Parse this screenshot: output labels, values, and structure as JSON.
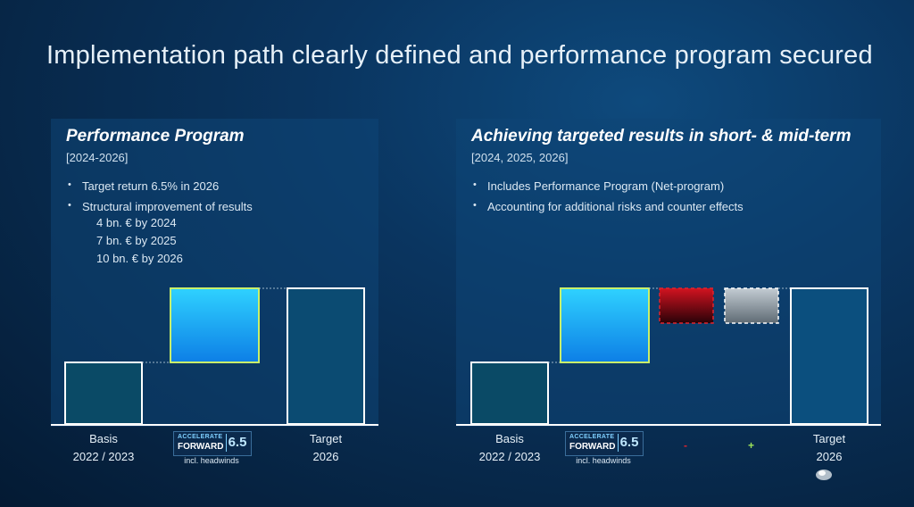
{
  "title": "Implementation path clearly defined and performance program secured",
  "left_panel": {
    "title": "Performance Program",
    "subtitle": "[2024-2026]",
    "bullets": [
      "Target return 6.5% in 2026",
      "Structural improvement of results"
    ],
    "subitems": [
      "4 bn. € by 2024",
      "7 bn. € by 2025",
      "10 bn. € by 2026"
    ],
    "chart": {
      "labels": [
        {
          "line1": "Basis",
          "line2": "2022 / 2023"
        },
        {
          "line1": "",
          "line2": "incl. headwinds"
        },
        {
          "line1": "Target",
          "line2": "2026"
        }
      ]
    }
  },
  "right_panel": {
    "title": "Achieving targeted results in short- & mid-term",
    "subtitle": "[2024, 2025, 2026]",
    "bullets": [
      "Includes Performance Program (Net-program)",
      "Accounting for additional risks and counter effects"
    ],
    "chart": {
      "labels": [
        {
          "line1": "Basis",
          "line2": "2022 / 2023"
        },
        {
          "line1": "",
          "line2": "incl. headwinds"
        },
        {
          "line1": "-",
          "line2": ""
        },
        {
          "line1": "+",
          "line2": ""
        },
        {
          "line1": "Target",
          "line2": "2026"
        }
      ]
    }
  },
  "logo": {
    "accelerate": "ACCELERATE",
    "forward": "FORWARD",
    "number": "6.5"
  },
  "colors": {
    "basis_fill": "#0a4a6e",
    "program_fill_top": "#27c8ff",
    "program_fill_bottom": "#0f86e8",
    "program_border": "#c9f06a",
    "target_fill": "#0b4f7e",
    "risk_fill_top": "#c8101a",
    "risk_fill_bottom": "#2a0208",
    "counter_fill_top": "#b9c3cb",
    "counter_fill_bottom": "#6b7780",
    "minus_color": "#e0242e",
    "plus_color": "#9ee35a"
  }
}
